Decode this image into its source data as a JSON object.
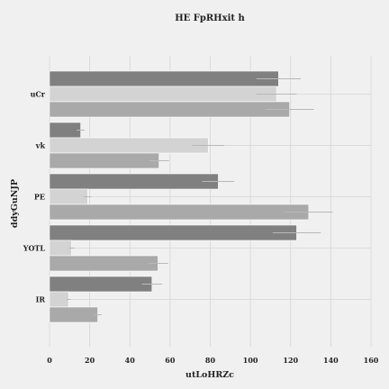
{
  "chart_data": {
    "type": "bar",
    "orientation": "horizontal",
    "title": "HE FpRHxit h",
    "xlabel": "utLoHRZc",
    "ylabel": "ddyGuNJP",
    "categories": [
      "uCr",
      "vk",
      "PE",
      "YOTL",
      "IR"
    ],
    "xlim": [
      0,
      160
    ],
    "xticks": [
      0,
      20,
      40,
      60,
      80,
      100,
      120,
      140,
      160
    ],
    "grid": true,
    "series": [
      {
        "color": "#808080",
        "values": [
          114,
          15.5,
          84,
          123,
          51
        ],
        "errors": [
          11,
          2,
          8,
          12,
          5
        ]
      },
      {
        "color": "#d3d3d3",
        "values": [
          113,
          79,
          19,
          11,
          9.5
        ],
        "errors": [
          10,
          8,
          2,
          1.5,
          1
        ]
      },
      {
        "color": "#a9a9a9",
        "values": [
          119.5,
          54.5,
          129,
          54,
          24
        ],
        "errors": [
          12,
          5,
          12,
          5,
          2
        ]
      }
    ]
  }
}
